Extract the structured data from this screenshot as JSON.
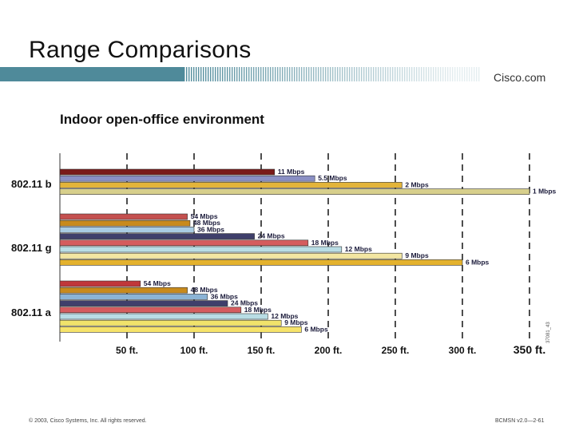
{
  "slide": {
    "title": "Range Comparisons",
    "brand": "Cisco.com",
    "footer_left": "© 2003, Cisco Systems, Inc. All rights reserved.",
    "footer_right": "BCMSN v2.0—2-61",
    "side_code": "37081_43",
    "band_color": "#4f8a9a"
  },
  "chart_data": {
    "type": "bar",
    "orientation": "horizontal",
    "title": "Indoor open-office environment",
    "x_unit": "ft.",
    "xlim": [
      0,
      350
    ],
    "x_ticks": [
      50,
      100,
      150,
      200,
      250,
      300,
      350
    ],
    "x_tick_labels": [
      "50 ft.",
      "100 ft.",
      "150 ft.",
      "200 ft.",
      "250 ft.",
      "300 ft.",
      "350 ft."
    ],
    "groups": [
      {
        "name": "802.11 b",
        "bars": [
          {
            "label": "11 Mbps",
            "value": 160,
            "color": "#7a1a1a"
          },
          {
            "label": "5.5 Mbps",
            "value": 190,
            "color": "#8a8fc4"
          },
          {
            "label": "2 Mbps",
            "value": 255,
            "color": "#e3b43a"
          },
          {
            "label": "1 Mbps",
            "value": 350,
            "color": "#d7cf8c"
          }
        ]
      },
      {
        "name": "802.11 g",
        "bars": [
          {
            "label": "54 Mbps",
            "value": 95,
            "color": "#c4504f"
          },
          {
            "label": "48 Mbps",
            "value": 97,
            "color": "#c88a1c"
          },
          {
            "label": "36 Mbps",
            "value": 100,
            "color": "#a9cce3"
          },
          {
            "label": "24 Mbps",
            "value": 145,
            "color": "#3f3f6b"
          },
          {
            "label": "18 Mbps",
            "value": 185,
            "color": "#d55c5e"
          },
          {
            "label": "12 Mbps",
            "value": 210,
            "color": "#b9dde5"
          },
          {
            "label": "9 Mbps",
            "value": 255,
            "color": "#f3e6a2"
          },
          {
            "label": "6 Mbps",
            "value": 300,
            "color": "#e4b22d"
          }
        ]
      },
      {
        "name": "802.11 a",
        "bars": [
          {
            "label": "54 Mbps",
            "value": 60,
            "color": "#c0373a"
          },
          {
            "label": "48 Mbps",
            "value": 95,
            "color": "#c88a1c"
          },
          {
            "label": "36 Mbps",
            "value": 110,
            "color": "#8bb4d6"
          },
          {
            "label": "24 Mbps",
            "value": 125,
            "color": "#3f3f6b"
          },
          {
            "label": "18 Mbps",
            "value": 135,
            "color": "#d55c5e"
          },
          {
            "label": "12 Mbps",
            "value": 155,
            "color": "#b9dde5"
          },
          {
            "label": "9 Mbps",
            "value": 165,
            "color": "#f1e36b"
          },
          {
            "label": "6 Mbps",
            "value": 180,
            "color": "#f6e36a"
          }
        ]
      }
    ]
  }
}
